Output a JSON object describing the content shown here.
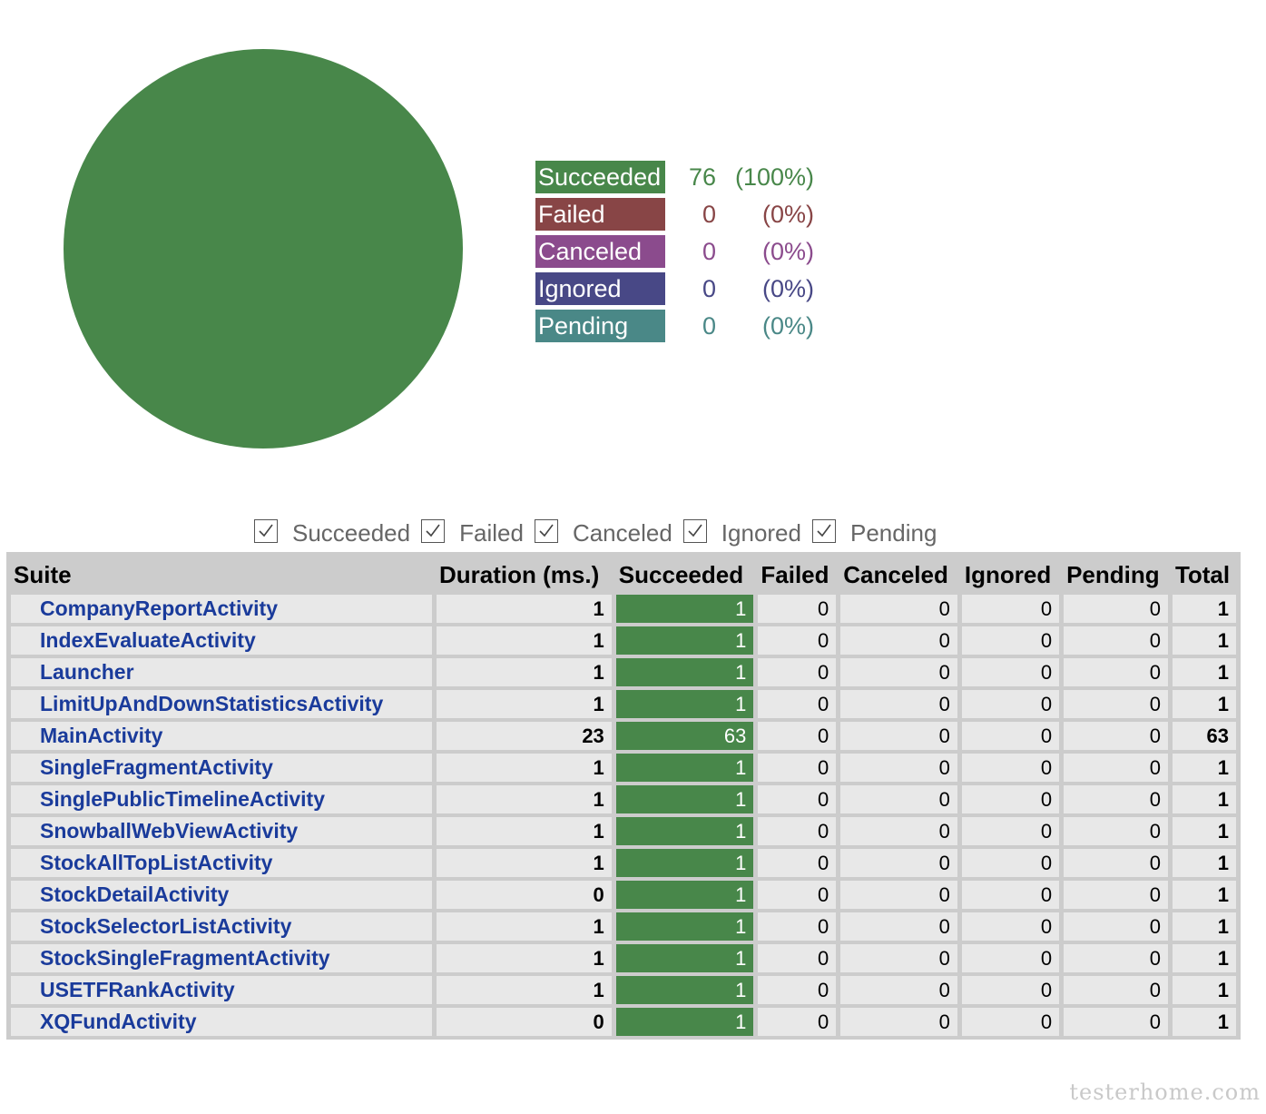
{
  "colors": {
    "succeeded": "#48874a",
    "failed": "#884546",
    "canceled": "#8b4b8d",
    "ignored": "#484886",
    "pending": "#4a8887",
    "header_bg": "#cccccc",
    "cell_bg": "#e8e8e8",
    "link": "#1a3b9b"
  },
  "chart_data": {
    "type": "pie",
    "categories": [
      "Succeeded",
      "Failed",
      "Canceled",
      "Ignored",
      "Pending"
    ],
    "values": [
      76,
      0,
      0,
      0,
      0
    ],
    "legend_position": "right"
  },
  "legend": [
    {
      "label": "Succeeded",
      "count": "76",
      "percent": "(100%)",
      "color": "#48874a"
    },
    {
      "label": "Failed",
      "count": "0",
      "percent": "(0%)",
      "color": "#884546"
    },
    {
      "label": "Canceled",
      "count": "0",
      "percent": "(0%)",
      "color": "#8b4b8d"
    },
    {
      "label": "Ignored",
      "count": "0",
      "percent": "(0%)",
      "color": "#484886"
    },
    {
      "label": "Pending",
      "count": "0",
      "percent": "(0%)",
      "color": "#4a8887"
    }
  ],
  "filters": [
    {
      "label": "Succeeded",
      "checked": true
    },
    {
      "label": "Failed",
      "checked": true
    },
    {
      "label": "Canceled",
      "checked": true
    },
    {
      "label": "Ignored",
      "checked": true
    },
    {
      "label": "Pending",
      "checked": true
    }
  ],
  "table": {
    "columns": [
      "Suite",
      "Duration (ms.)",
      "Succeeded",
      "Failed",
      "Canceled",
      "Ignored",
      "Pending",
      "Total"
    ],
    "rows": [
      [
        "CompanyReportActivity",
        "1",
        "1",
        "0",
        "0",
        "0",
        "0",
        "1"
      ],
      [
        "IndexEvaluateActivity",
        "1",
        "1",
        "0",
        "0",
        "0",
        "0",
        "1"
      ],
      [
        "Launcher",
        "1",
        "1",
        "0",
        "0",
        "0",
        "0",
        "1"
      ],
      [
        "LimitUpAndDownStatisticsActivity",
        "1",
        "1",
        "0",
        "0",
        "0",
        "0",
        "1"
      ],
      [
        "MainActivity",
        "23",
        "63",
        "0",
        "0",
        "0",
        "0",
        "63"
      ],
      [
        "SingleFragmentActivity",
        "1",
        "1",
        "0",
        "0",
        "0",
        "0",
        "1"
      ],
      [
        "SinglePublicTimelineActivity",
        "1",
        "1",
        "0",
        "0",
        "0",
        "0",
        "1"
      ],
      [
        "SnowballWebViewActivity",
        "1",
        "1",
        "0",
        "0",
        "0",
        "0",
        "1"
      ],
      [
        "StockAllTopListActivity",
        "1",
        "1",
        "0",
        "0",
        "0",
        "0",
        "1"
      ],
      [
        "StockDetailActivity",
        "0",
        "1",
        "0",
        "0",
        "0",
        "0",
        "1"
      ],
      [
        "StockSelectorListActivity",
        "1",
        "1",
        "0",
        "0",
        "0",
        "0",
        "1"
      ],
      [
        "StockSingleFragmentActivity",
        "1",
        "1",
        "0",
        "0",
        "0",
        "0",
        "1"
      ],
      [
        "USETFRankActivity",
        "1",
        "1",
        "0",
        "0",
        "0",
        "0",
        "1"
      ],
      [
        "XQFundActivity",
        "0",
        "1",
        "0",
        "0",
        "0",
        "0",
        "1"
      ]
    ]
  },
  "watermark": "testerhome.com"
}
